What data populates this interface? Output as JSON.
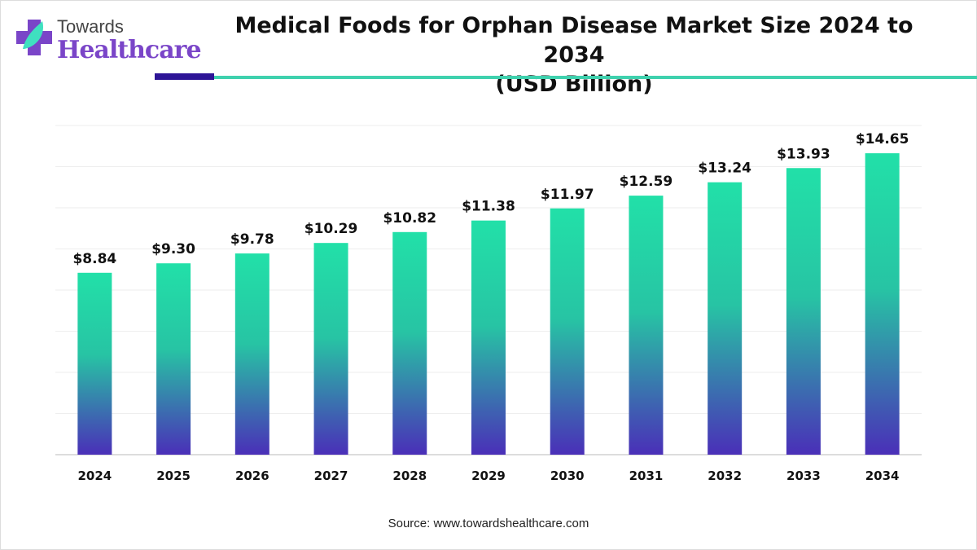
{
  "logo": {
    "line1": "Towards",
    "line2": "Healthcare"
  },
  "title_line1": "Medical Foods for Orphan Disease Market Size 2024 to 2034",
  "title_line2": "(USD Billion)",
  "source": "Source: www.towardshealthcare.com",
  "colors": {
    "bar_top": "#22e0a8",
    "bar_bottom": "#4a2fb8",
    "accent_dark": "#2d1596",
    "accent_teal": "#3fd1ae",
    "logo_purple": "#7a45c8"
  },
  "chart_data": {
    "type": "bar",
    "title": "Medical Foods for Orphan Disease Market Size 2024 to 2034 (USD Billion)",
    "categories": [
      "2024",
      "2025",
      "2026",
      "2027",
      "2028",
      "2029",
      "2030",
      "2031",
      "2032",
      "2033",
      "2034"
    ],
    "values": [
      8.84,
      9.3,
      9.78,
      10.29,
      10.82,
      11.38,
      11.97,
      12.59,
      13.24,
      13.93,
      14.65
    ],
    "data_labels": [
      "$8.84",
      "$9.30",
      "$9.78",
      "$10.29",
      "$10.82",
      "$11.38",
      "$11.97",
      "$12.59",
      "$13.24",
      "$13.93",
      "$14.65"
    ],
    "ylim": [
      0,
      16
    ],
    "y_grid_step": 2,
    "grid": true,
    "y_axis_labels_shown": false,
    "legend": "none"
  }
}
